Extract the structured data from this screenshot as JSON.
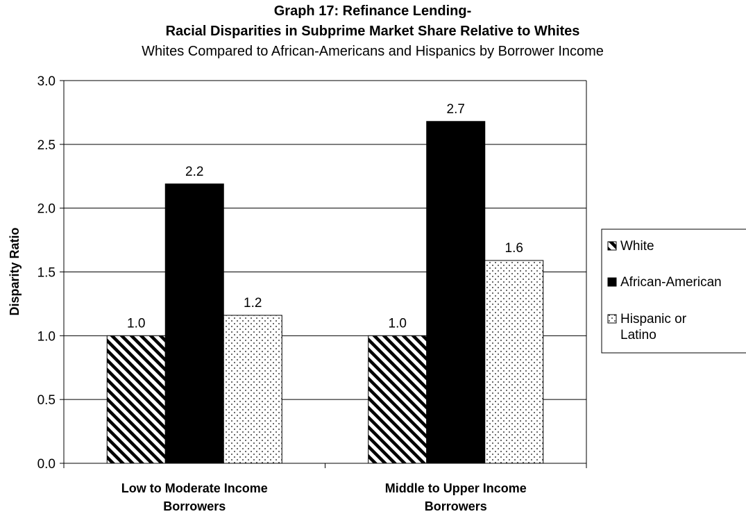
{
  "chart_data": {
    "type": "bar",
    "title": "Graph 17: Refinance Lending-",
    "title_line2": "Racial Disparities in Subprime Market Share Relative to Whites",
    "subtitle": "Whites Compared to African-Americans and Hispanics by Borrower Income",
    "ylabel": "Disparity Ratio",
    "xlabel": "",
    "ylim": [
      0,
      3.0
    ],
    "yticks": [
      "0.0",
      "0.5",
      "1.0",
      "1.5",
      "2.0",
      "2.5",
      "3.0"
    ],
    "categories": [
      [
        "Low to Moderate Income",
        "Borrowers"
      ],
      [
        "Middle to Upper Income",
        "Borrowers"
      ]
    ],
    "series": [
      {
        "name": "White",
        "values": [
          1.0,
          1.0
        ],
        "labels": [
          "1.0",
          "1.0"
        ],
        "pattern": "diagonal-hatch",
        "legend_lines": [
          "White"
        ]
      },
      {
        "name": "African-American",
        "values": [
          2.19,
          2.68
        ],
        "labels": [
          "2.2",
          "2.7"
        ],
        "pattern": "solid-black",
        "legend_lines": [
          "African-American"
        ]
      },
      {
        "name": "Hispanic or Latino",
        "values": [
          1.16,
          1.59
        ],
        "labels": [
          "1.2",
          "1.6"
        ],
        "pattern": "dots",
        "legend_lines": [
          "Hispanic or",
          "Latino"
        ]
      }
    ],
    "grid": true,
    "legend_position": "right",
    "colors": {
      "bar_outline": "#000000",
      "gridline": "#000000",
      "background": "#ffffff",
      "solid": "#000000"
    }
  }
}
